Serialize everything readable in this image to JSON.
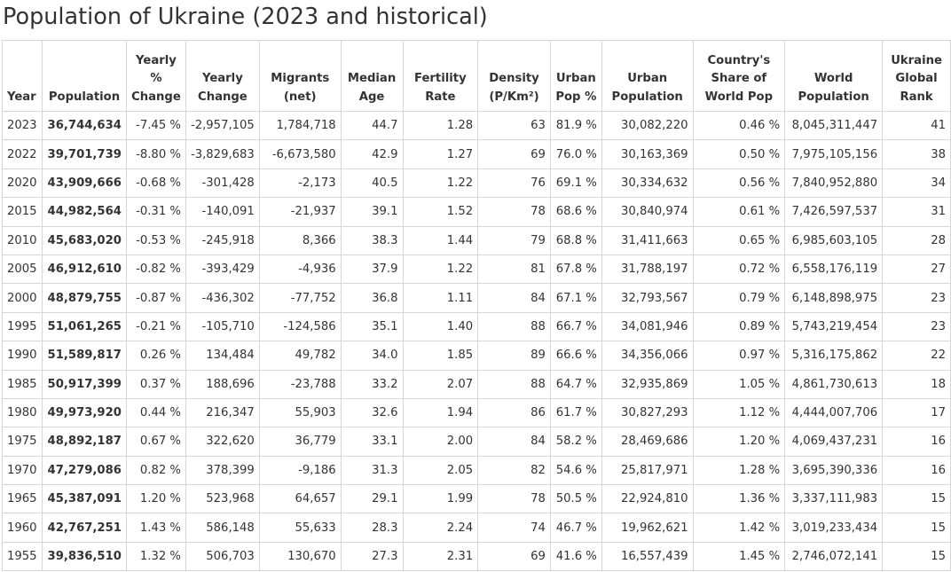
{
  "title": "Population of Ukraine (2023 and historical)",
  "columns": [
    [
      "Year"
    ],
    [
      "Population"
    ],
    [
      "Yearly",
      "%",
      "Change"
    ],
    [
      "Yearly",
      "Change"
    ],
    [
      "Migrants",
      "(net)"
    ],
    [
      "Median",
      "Age"
    ],
    [
      "Fertility",
      "Rate"
    ],
    [
      "Density",
      "(P/Km²)"
    ],
    [
      "Urban",
      "Pop %"
    ],
    [
      "Urban",
      "Population"
    ],
    [
      "Country's",
      "Share of",
      "World Pop"
    ],
    [
      "World",
      "Population"
    ],
    [
      "Ukraine",
      "Global",
      "Rank"
    ]
  ],
  "rows": [
    [
      "2023",
      "36,744,634",
      "-7.45 %",
      "-2,957,105",
      "1,784,718",
      "44.7",
      "1.28",
      "63",
      "81.9 %",
      "30,082,220",
      "0.46 %",
      "8,045,311,447",
      "41"
    ],
    [
      "2022",
      "39,701,739",
      "-8.80 %",
      "-3,829,683",
      "-6,673,580",
      "42.9",
      "1.27",
      "69",
      "76.0 %",
      "30,163,369",
      "0.50 %",
      "7,975,105,156",
      "38"
    ],
    [
      "2020",
      "43,909,666",
      "-0.68 %",
      "-301,428",
      "-2,173",
      "40.5",
      "1.22",
      "76",
      "69.1 %",
      "30,334,632",
      "0.56 %",
      "7,840,952,880",
      "34"
    ],
    [
      "2015",
      "44,982,564",
      "-0.31 %",
      "-140,091",
      "-21,937",
      "39.1",
      "1.52",
      "78",
      "68.6 %",
      "30,840,974",
      "0.61 %",
      "7,426,597,537",
      "31"
    ],
    [
      "2010",
      "45,683,020",
      "-0.53 %",
      "-245,918",
      "8,366",
      "38.3",
      "1.44",
      "79",
      "68.8 %",
      "31,411,663",
      "0.65 %",
      "6,985,603,105",
      "28"
    ],
    [
      "2005",
      "46,912,610",
      "-0.82 %",
      "-393,429",
      "-4,936",
      "37.9",
      "1.22",
      "81",
      "67.8 %",
      "31,788,197",
      "0.72 %",
      "6,558,176,119",
      "27"
    ],
    [
      "2000",
      "48,879,755",
      "-0.87 %",
      "-436,302",
      "-77,752",
      "36.8",
      "1.11",
      "84",
      "67.1 %",
      "32,793,567",
      "0.79 %",
      "6,148,898,975",
      "23"
    ],
    [
      "1995",
      "51,061,265",
      "-0.21 %",
      "-105,710",
      "-124,586",
      "35.1",
      "1.40",
      "88",
      "66.7 %",
      "34,081,946",
      "0.89 %",
      "5,743,219,454",
      "23"
    ],
    [
      "1990",
      "51,589,817",
      "0.26 %",
      "134,484",
      "49,782",
      "34.0",
      "1.85",
      "89",
      "66.6 %",
      "34,356,066",
      "0.97 %",
      "5,316,175,862",
      "22"
    ],
    [
      "1985",
      "50,917,399",
      "0.37 %",
      "188,696",
      "-23,788",
      "33.2",
      "2.07",
      "88",
      "64.7 %",
      "32,935,869",
      "1.05 %",
      "4,861,730,613",
      "18"
    ],
    [
      "1980",
      "49,973,920",
      "0.44 %",
      "216,347",
      "55,903",
      "32.6",
      "1.94",
      "86",
      "61.7 %",
      "30,827,293",
      "1.12 %",
      "4,444,007,706",
      "17"
    ],
    [
      "1975",
      "48,892,187",
      "0.67 %",
      "322,620",
      "36,779",
      "33.1",
      "2.00",
      "84",
      "58.2 %",
      "28,469,686",
      "1.20 %",
      "4,069,437,231",
      "16"
    ],
    [
      "1970",
      "47,279,086",
      "0.82 %",
      "378,399",
      "-9,186",
      "31.3",
      "2.05",
      "82",
      "54.6 %",
      "25,817,971",
      "1.28 %",
      "3,695,390,336",
      "16"
    ],
    [
      "1965",
      "45,387,091",
      "1.20 %",
      "523,968",
      "64,657",
      "29.1",
      "1.99",
      "78",
      "50.5 %",
      "22,924,810",
      "1.36 %",
      "3,337,111,983",
      "15"
    ],
    [
      "1960",
      "42,767,251",
      "1.43 %",
      "586,148",
      "55,633",
      "28.3",
      "2.24",
      "74",
      "46.7 %",
      "19,962,621",
      "1.42 %",
      "3,019,233,434",
      "15"
    ],
    [
      "1955",
      "39,836,510",
      "1.32 %",
      "506,703",
      "130,670",
      "27.3",
      "2.31",
      "69",
      "41.6 %",
      "16,557,439",
      "1.45 %",
      "2,746,072,141",
      "15"
    ]
  ]
}
